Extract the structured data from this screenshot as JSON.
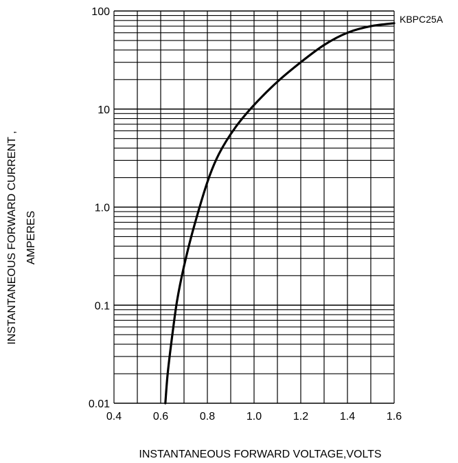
{
  "chart_data": {
    "type": "line",
    "x_scale": "linear",
    "y_scale": "log",
    "xlim": [
      0.4,
      1.6
    ],
    "ylim": [
      0.01,
      100
    ],
    "x_ticks": [
      "0.4",
      "0.6",
      "0.8",
      "1.0",
      "1.2",
      "1.4",
      "1.6"
    ],
    "y_ticks": [
      {
        "value": 0.01,
        "label": "0.01"
      },
      {
        "value": 0.1,
        "label": "0.1"
      },
      {
        "value": 1,
        "label": "1.0"
      },
      {
        "value": 10,
        "label": "10"
      },
      {
        "value": 100,
        "label": "100"
      }
    ],
    "xlabel": "INSTANTANEOUS FORWARD VOLTAGE,VOLTS",
    "ylabel": [
      "INSTANTANEOUS  FORWARD  CURRENT ,",
      "AMPERES"
    ],
    "grid": true,
    "series": [
      {
        "name": "KBPC25A",
        "points": [
          [
            0.62,
            0.01
          ],
          [
            0.63,
            0.02
          ],
          [
            0.65,
            0.05
          ],
          [
            0.67,
            0.11
          ],
          [
            0.7,
            0.25
          ],
          [
            0.74,
            0.6
          ],
          [
            0.8,
            1.8
          ],
          [
            0.85,
            3.5
          ],
          [
            0.92,
            6.5
          ],
          [
            1.0,
            11
          ],
          [
            1.1,
            19
          ],
          [
            1.2,
            30
          ],
          [
            1.3,
            45
          ],
          [
            1.4,
            60
          ],
          [
            1.5,
            70
          ],
          [
            1.6,
            75
          ]
        ]
      }
    ]
  }
}
